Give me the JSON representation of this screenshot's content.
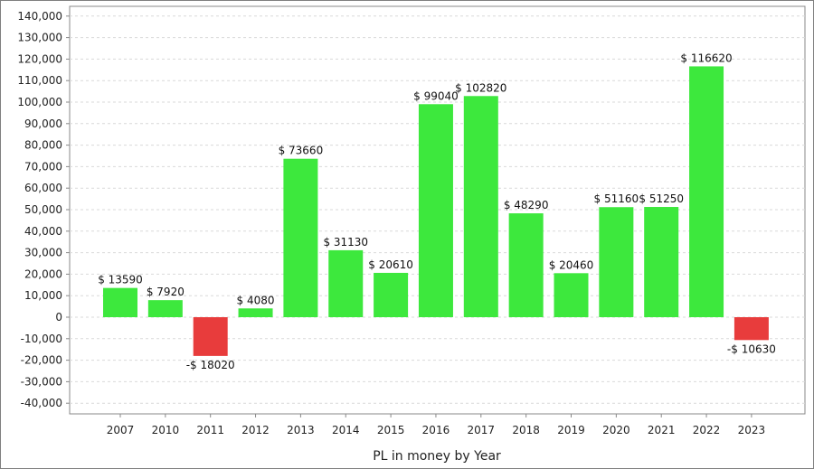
{
  "chart_data": {
    "type": "bar",
    "xlabel": "PL in money by Year",
    "ylabel": "",
    "ylim": [
      -45000,
      145000
    ],
    "yticks": [
      -40000,
      -30000,
      -20000,
      -10000,
      0,
      10000,
      20000,
      30000,
      40000,
      50000,
      60000,
      70000,
      80000,
      90000,
      100000,
      110000,
      120000,
      130000,
      140000
    ],
    "ytick_labels": [
      "-40,000",
      "-30,000",
      "-20,000",
      "-10,000",
      "0",
      "10,000",
      "20,000",
      "30,000",
      "40,000",
      "50,000",
      "60,000",
      "70,000",
      "80,000",
      "90,000",
      "100,000",
      "110,000",
      "120,000",
      "130,000",
      "140,000"
    ],
    "grid": true,
    "categories": [
      "2007",
      "2010",
      "2011",
      "2012",
      "2013",
      "2014",
      "2015",
      "2016",
      "2017",
      "2018",
      "2019",
      "2020",
      "2021",
      "2022",
      "2023"
    ],
    "values": [
      13590,
      7920,
      -18020,
      4080,
      73660,
      31130,
      20610,
      99040,
      102820,
      48290,
      20460,
      51160,
      51250,
      116620,
      -10630
    ],
    "data_labels": [
      "$ 13590",
      "$ 7920",
      "-$ 18020",
      "$ 4080",
      "$ 73660",
      "$ 31130",
      "$ 20610",
      "$ 99040",
      "$ 102820",
      "$ 48290",
      "$ 20460",
      "$ 51160",
      "$ 51250",
      "$ 116620",
      "-$ 10630"
    ],
    "colors": {
      "positive": "#3de83d",
      "negative": "#e83c3c",
      "grid": "#d9d9d9",
      "axis": "#888888"
    }
  }
}
